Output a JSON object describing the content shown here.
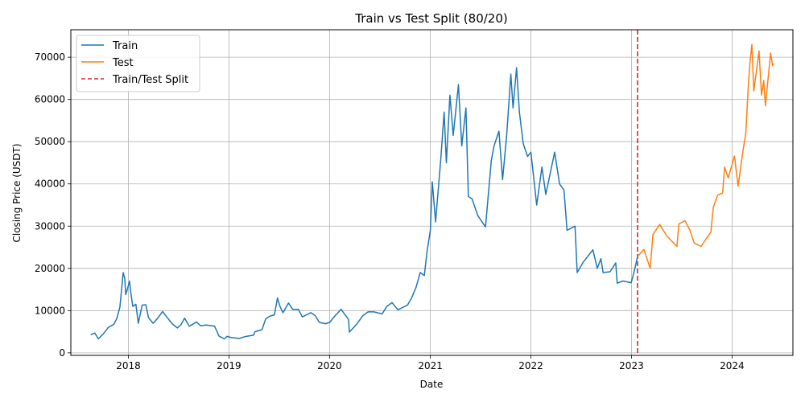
{
  "chart_data": {
    "type": "line",
    "title": "Train vs Test Split (80/20)",
    "xlabel": "Date",
    "ylabel": "Closing Price (USDT)",
    "x_ticks": [
      {
        "label": "2018",
        "date": "2018-01-01"
      },
      {
        "label": "2019",
        "date": "2019-01-01"
      },
      {
        "label": "2020",
        "date": "2020-01-01"
      },
      {
        "label": "2021",
        "date": "2021-01-01"
      },
      {
        "label": "2022",
        "date": "2022-01-01"
      },
      {
        "label": "2023",
        "date": "2023-01-01"
      },
      {
        "label": "2024",
        "date": "2024-01-01"
      }
    ],
    "y_ticks": [
      0,
      10000,
      20000,
      30000,
      40000,
      50000,
      60000,
      70000
    ],
    "xlim": [
      "2017-06-06",
      "2024-08-09"
    ],
    "ylim": [
      -600,
      76500
    ],
    "grid": true,
    "legend_position": "top-left",
    "split_line": {
      "name": "Train/Test Split",
      "date": "2023-01-23",
      "color": "#d62728",
      "style": "dashed"
    },
    "series": [
      {
        "name": "Train",
        "color": "#1f77b4",
        "points": [
          [
            "2017-08-17",
            4300
          ],
          [
            "2017-09-01",
            4700
          ],
          [
            "2017-09-14",
            3300
          ],
          [
            "2017-10-01",
            4400
          ],
          [
            "2017-10-20",
            6000
          ],
          [
            "2017-11-10",
            6800
          ],
          [
            "2017-11-20",
            8200
          ],
          [
            "2017-12-01",
            10800
          ],
          [
            "2017-12-08",
            15500
          ],
          [
            "2017-12-13",
            19000
          ],
          [
            "2017-12-19",
            17500
          ],
          [
            "2017-12-22",
            13800
          ],
          [
            "2017-12-28",
            15000
          ],
          [
            "2018-01-05",
            17000
          ],
          [
            "2018-01-10",
            14000
          ],
          [
            "2018-01-17",
            11000
          ],
          [
            "2018-01-28",
            11500
          ],
          [
            "2018-02-06",
            7000
          ],
          [
            "2018-02-20",
            11300
          ],
          [
            "2018-03-05",
            11400
          ],
          [
            "2018-03-15",
            8300
          ],
          [
            "2018-04-01",
            7000
          ],
          [
            "2018-04-15",
            8000
          ],
          [
            "2018-05-05",
            9800
          ],
          [
            "2018-05-20",
            8500
          ],
          [
            "2018-06-10",
            6800
          ],
          [
            "2018-06-28",
            5900
          ],
          [
            "2018-07-10",
            6600
          ],
          [
            "2018-07-24",
            8200
          ],
          [
            "2018-08-10",
            6300
          ],
          [
            "2018-09-05",
            7300
          ],
          [
            "2018-09-20",
            6400
          ],
          [
            "2018-10-10",
            6600
          ],
          [
            "2018-11-10",
            6300
          ],
          [
            "2018-11-20",
            4800
          ],
          [
            "2018-11-25",
            4000
          ],
          [
            "2018-12-15",
            3300
          ],
          [
            "2018-12-25",
            3900
          ],
          [
            "2019-01-10",
            3600
          ],
          [
            "2019-02-08",
            3400
          ],
          [
            "2019-03-01",
            3850
          ],
          [
            "2019-04-01",
            4200
          ],
          [
            "2019-04-05",
            5000
          ],
          [
            "2019-05-01",
            5500
          ],
          [
            "2019-05-14",
            8000
          ],
          [
            "2019-05-30",
            8700
          ],
          [
            "2019-06-15",
            9000
          ],
          [
            "2019-06-26",
            13000
          ],
          [
            "2019-07-05",
            11000
          ],
          [
            "2019-07-16",
            9500
          ],
          [
            "2019-08-05",
            11800
          ],
          [
            "2019-08-20",
            10300
          ],
          [
            "2019-09-10",
            10300
          ],
          [
            "2019-09-24",
            8500
          ],
          [
            "2019-10-25",
            9500
          ],
          [
            "2019-11-10",
            8800
          ],
          [
            "2019-11-25",
            7200
          ],
          [
            "2019-12-17",
            6900
          ],
          [
            "2020-01-01",
            7200
          ],
          [
            "2020-01-20",
            8700
          ],
          [
            "2020-02-12",
            10300
          ],
          [
            "2020-03-10",
            7900
          ],
          [
            "2020-03-13",
            4900
          ],
          [
            "2020-04-10",
            6900
          ],
          [
            "2020-05-01",
            8800
          ],
          [
            "2020-05-20",
            9700
          ],
          [
            "2020-06-10",
            9700
          ],
          [
            "2020-07-10",
            9200
          ],
          [
            "2020-07-27",
            11000
          ],
          [
            "2020-08-15",
            11900
          ],
          [
            "2020-09-05",
            10200
          ],
          [
            "2020-10-10",
            11300
          ],
          [
            "2020-10-25",
            13000
          ],
          [
            "2020-11-10",
            15500
          ],
          [
            "2020-11-25",
            19000
          ],
          [
            "2020-12-10",
            18300
          ],
          [
            "2020-12-20",
            24000
          ],
          [
            "2021-01-01",
            29000
          ],
          [
            "2021-01-08",
            40500
          ],
          [
            "2021-01-20",
            31000
          ],
          [
            "2021-02-08",
            46000
          ],
          [
            "2021-02-20",
            57000
          ],
          [
            "2021-02-28",
            45000
          ],
          [
            "2021-03-13",
            61000
          ],
          [
            "2021-03-25",
            51500
          ],
          [
            "2021-04-13",
            63500
          ],
          [
            "2021-04-25",
            49000
          ],
          [
            "2021-05-10",
            58000
          ],
          [
            "2021-05-19",
            37000
          ],
          [
            "2021-06-01",
            36500
          ],
          [
            "2021-06-22",
            32500
          ],
          [
            "2021-07-20",
            29800
          ],
          [
            "2021-08-10",
            45500
          ],
          [
            "2021-08-20",
            49000
          ],
          [
            "2021-09-07",
            52500
          ],
          [
            "2021-09-20",
            41000
          ],
          [
            "2021-10-05",
            51500
          ],
          [
            "2021-10-20",
            66000
          ],
          [
            "2021-10-28",
            58000
          ],
          [
            "2021-11-10",
            67500
          ],
          [
            "2021-11-20",
            57000
          ],
          [
            "2021-12-04",
            49500
          ],
          [
            "2021-12-20",
            46500
          ],
          [
            "2022-01-01",
            47500
          ],
          [
            "2022-01-22",
            35000
          ],
          [
            "2022-02-10",
            44000
          ],
          [
            "2022-02-24",
            37500
          ],
          [
            "2022-03-28",
            47500
          ],
          [
            "2022-04-15",
            40000
          ],
          [
            "2022-05-01",
            38500
          ],
          [
            "2022-05-12",
            29000
          ],
          [
            "2022-06-10",
            30000
          ],
          [
            "2022-06-18",
            19000
          ],
          [
            "2022-07-10",
            21500
          ],
          [
            "2022-08-14",
            24400
          ],
          [
            "2022-08-30",
            20000
          ],
          [
            "2022-09-12",
            22300
          ],
          [
            "2022-09-20",
            19000
          ],
          [
            "2022-10-15",
            19200
          ],
          [
            "2022-11-05",
            21300
          ],
          [
            "2022-11-10",
            16500
          ],
          [
            "2022-12-01",
            17000
          ],
          [
            "2022-12-31",
            16600
          ],
          [
            "2023-01-13",
            19900
          ],
          [
            "2023-01-23",
            22800
          ]
        ]
      },
      {
        "name": "Test",
        "color": "#ff7f0e",
        "points": [
          [
            "2023-01-23",
            22800
          ],
          [
            "2023-02-15",
            24500
          ],
          [
            "2023-03-10",
            20000
          ],
          [
            "2023-03-20",
            28000
          ],
          [
            "2023-04-13",
            30400
          ],
          [
            "2023-05-10",
            27600
          ],
          [
            "2023-06-15",
            25200
          ],
          [
            "2023-06-22",
            30500
          ],
          [
            "2023-07-14",
            31300
          ],
          [
            "2023-07-31",
            29200
          ],
          [
            "2023-08-17",
            26000
          ],
          [
            "2023-09-11",
            25200
          ],
          [
            "2023-09-29",
            27000
          ],
          [
            "2023-10-16",
            28500
          ],
          [
            "2023-10-25",
            34500
          ],
          [
            "2023-11-10",
            37400
          ],
          [
            "2023-11-28",
            37800
          ],
          [
            "2023-12-05",
            44000
          ],
          [
            "2023-12-18",
            41400
          ],
          [
            "2024-01-10",
            46600
          ],
          [
            "2024-01-23",
            39500
          ],
          [
            "2024-02-10",
            48000
          ],
          [
            "2024-02-20",
            52000
          ],
          [
            "2024-02-28",
            62000
          ],
          [
            "2024-03-05",
            68000
          ],
          [
            "2024-03-13",
            73000
          ],
          [
            "2024-03-20",
            62000
          ],
          [
            "2024-04-08",
            71500
          ],
          [
            "2024-04-17",
            61000
          ],
          [
            "2024-04-25",
            64500
          ],
          [
            "2024-05-01",
            58500
          ],
          [
            "2024-05-20",
            71000
          ],
          [
            "2024-05-27",
            68000
          ],
          [
            "2024-05-31",
            68500
          ]
        ]
      }
    ]
  }
}
